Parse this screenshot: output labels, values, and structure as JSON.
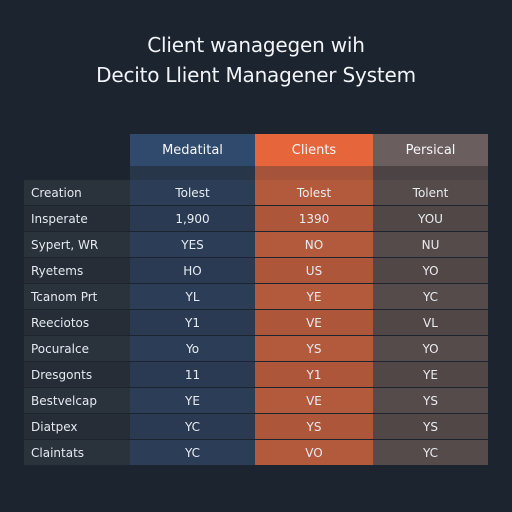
{
  "title_line1": "Client wanagegen wih",
  "title_line2": "Decito Llient Managener System",
  "colors": {
    "background": "#1c2430",
    "col_blue": "#2f4a6c",
    "col_orange": "#e7653a",
    "col_gray": "#6a5e5e"
  },
  "table": {
    "columns": [
      "Medatital",
      "Clients",
      "Persical"
    ],
    "rows": [
      {
        "label": "Creation",
        "values": [
          "Tolest",
          "Tolest",
          "Tolent"
        ]
      },
      {
        "label": "Insperate",
        "values": [
          "1,900",
          "1390",
          "YOU"
        ]
      },
      {
        "label": "Sypert, WR",
        "values": [
          "YES",
          "NO",
          "NU"
        ]
      },
      {
        "label": "Ryetems",
        "values": [
          "HO",
          "US",
          "YO"
        ]
      },
      {
        "label": "Tcanom Prt",
        "values": [
          "YL",
          "YE",
          "YC"
        ]
      },
      {
        "label": "Reeciotos",
        "values": [
          "Y1",
          "VE",
          "VL"
        ]
      },
      {
        "label": "Pocuralce",
        "values": [
          "Yo",
          "YS",
          "YO"
        ]
      },
      {
        "label": "Dresgonts",
        "values": [
          "11",
          "Y1",
          "YE"
        ]
      },
      {
        "label": "Bestvelcap",
        "values": [
          "YE",
          "VE",
          "YS"
        ]
      },
      {
        "label": "Diatpex",
        "values": [
          "YC",
          "YS",
          "YS"
        ]
      },
      {
        "label": "Claintats",
        "values": [
          "YC",
          "VO",
          "YC"
        ]
      }
    ]
  }
}
